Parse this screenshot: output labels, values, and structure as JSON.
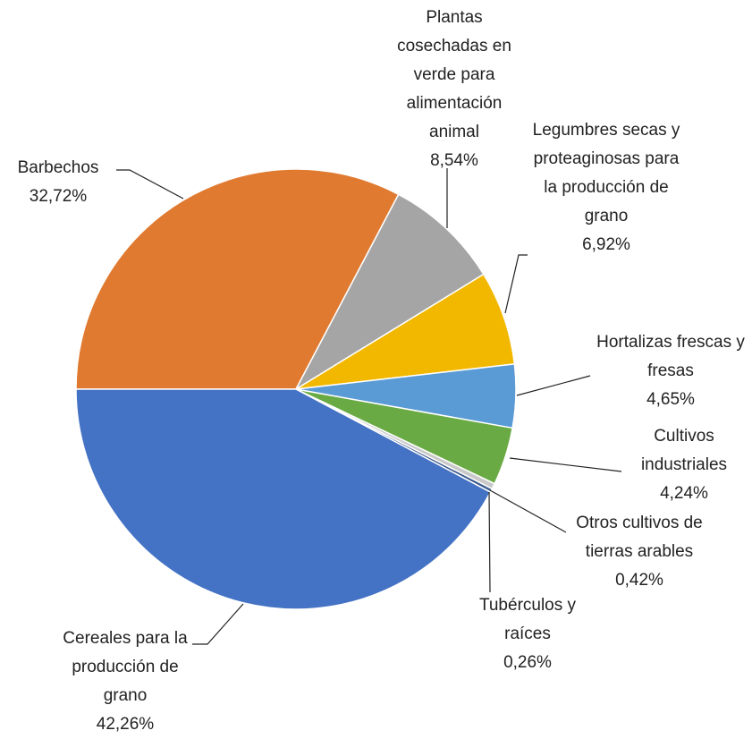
{
  "chart_data": {
    "type": "pie",
    "categories": [
      "Barbechos",
      "Plantas cosechadas en verde para alimentación animal",
      "Legumbres secas y proteaginosas para la producción de grano",
      "Hortalizas frescas y fresas",
      "Cultivos industriales",
      "Otros cultivos de tierras arables",
      "Tubérculos y raíces",
      "Cereales para la producción de grano"
    ],
    "values": [
      32.72,
      8.54,
      6.92,
      4.65,
      4.24,
      0.42,
      0.26,
      42.26
    ],
    "value_labels": [
      "32,72%",
      "8,54%",
      "6,92%",
      "4,65%",
      "4,24%",
      "0,42%",
      "0,26%",
      "42,26%"
    ],
    "colors": [
      "#e07a30",
      "#a5a5a5",
      "#f2b800",
      "#5b9bd5",
      "#6aaa45",
      "#c9c9c9",
      "#3a5a8c",
      "#4472c4"
    ]
  }
}
